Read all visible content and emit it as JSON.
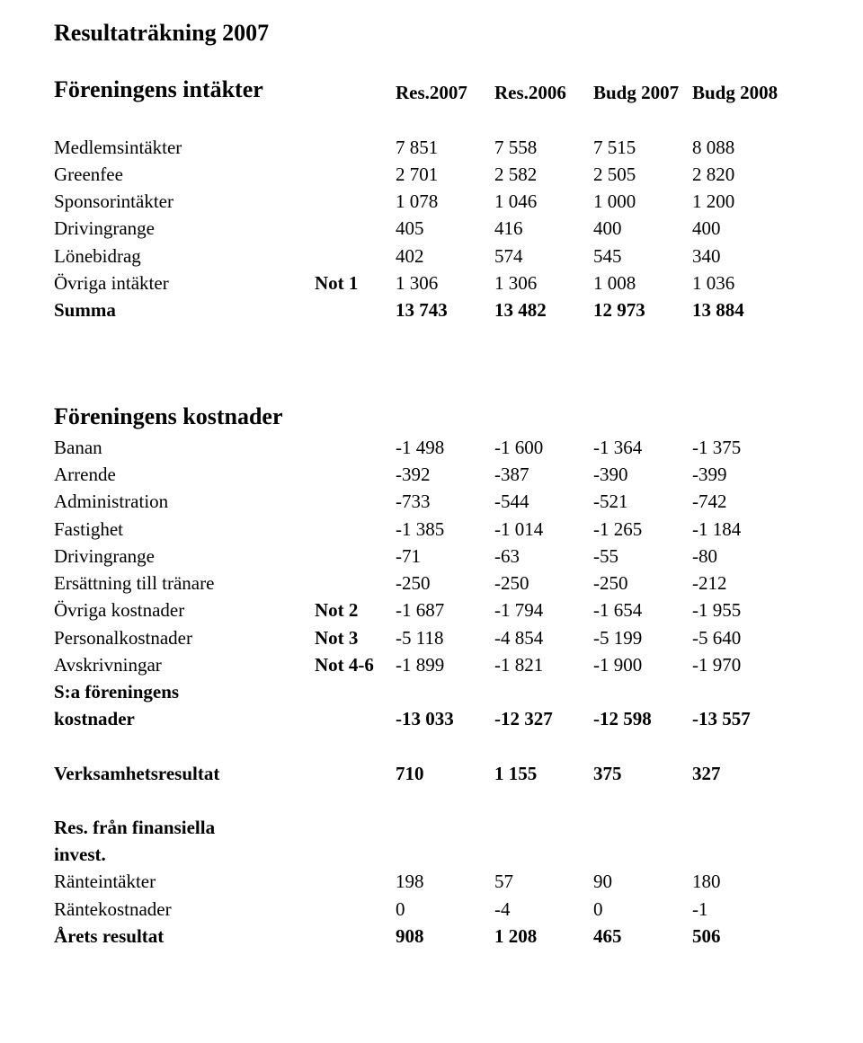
{
  "title": "Resultaträkning 2007",
  "columns": {
    "intakter_label": "Föreningens intäkter",
    "c1": "Res.2007",
    "c2": "Res.2006",
    "c3": "Budg 2007",
    "c4": "Budg 2008"
  },
  "intakter": [
    {
      "label": "Medlemsintäkter",
      "note": "",
      "v": [
        "7 851",
        "7 558",
        "7 515",
        "8 088"
      ]
    },
    {
      "label": "Greenfee",
      "note": "",
      "v": [
        "2 701",
        "2 582",
        "2 505",
        "2 820"
      ]
    },
    {
      "label": "Sponsorintäkter",
      "note": "",
      "v": [
        "1 078",
        "1 046",
        "1 000",
        "1 200"
      ]
    },
    {
      "label": "Drivingrange",
      "note": "",
      "v": [
        "405",
        "416",
        "400",
        "400"
      ]
    },
    {
      "label": "Lönebidrag",
      "note": "",
      "v": [
        "402",
        "574",
        "545",
        "340"
      ]
    },
    {
      "label": "Övriga intäkter",
      "note": "Not 1",
      "v": [
        "1 306",
        "1 306",
        "1 008",
        "1 036"
      ]
    }
  ],
  "intakter_sum": {
    "label": "Summa",
    "v": [
      "13 743",
      "13 482",
      "12 973",
      "13 884"
    ]
  },
  "kostnader_heading": "Föreningens kostnader",
  "kostnader": [
    {
      "label": "Banan",
      "note": "",
      "v": [
        "-1 498",
        "-1 600",
        "-1 364",
        "-1 375"
      ]
    },
    {
      "label": "Arrende",
      "note": "",
      "v": [
        "-392",
        "-387",
        "-390",
        "-399"
      ]
    },
    {
      "label": "Administration",
      "note": "",
      "v": [
        "-733",
        "-544",
        "-521",
        "-742"
      ]
    },
    {
      "label": "Fastighet",
      "note": "",
      "v": [
        "-1 385",
        "-1 014",
        "-1 265",
        "-1 184"
      ]
    },
    {
      "label": "Drivingrange",
      "note": "",
      "v": [
        "-71",
        "-63",
        "-55",
        "-80"
      ]
    },
    {
      "label": "Ersättning till tränare",
      "note": "",
      "v": [
        "-250",
        "-250",
        "-250",
        "-212"
      ]
    },
    {
      "label": "Övriga kostnader",
      "note": "Not 2",
      "v": [
        "-1 687",
        "-1 794",
        "-1 654",
        "-1 955"
      ]
    },
    {
      "label": "Personalkostnader",
      "note": "Not 3",
      "v": [
        "-5 118",
        "-4 854",
        "-5 199",
        "-5 640"
      ]
    },
    {
      "label": "Avskrivningar",
      "note": "Not 4-6",
      "v": [
        "-1 899",
        "-1 821",
        "-1 900",
        "-1 970"
      ]
    }
  ],
  "kostnader_sum": {
    "label1": "S:a föreningens",
    "label2": "kostnader",
    "v": [
      "-13 033",
      "-12 327",
      "-12 598",
      "-13 557"
    ]
  },
  "verksamhet": {
    "label": "Verksamhetsresultat",
    "v": [
      "710",
      "1 155",
      "375",
      "327"
    ]
  },
  "fin_heading1": "Res. från finansiella",
  "fin_heading2": "invest.",
  "fin_rows": [
    {
      "label": "Ränteintäkter",
      "v": [
        "198",
        "57",
        "90",
        "180"
      ]
    },
    {
      "label": "Räntekostnader",
      "v": [
        "0",
        "-4",
        "0",
        "-1"
      ]
    }
  ],
  "year_result": {
    "label": "Årets resultat",
    "v": [
      "908",
      "1 208",
      "465",
      "506"
    ]
  }
}
